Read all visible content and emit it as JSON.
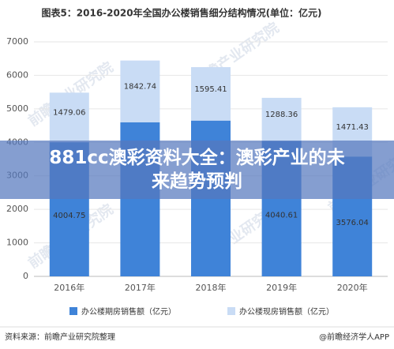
{
  "chart_data": {
    "type": "stacked_bar",
    "title": "图表5：2016-2020年全国办公楼销售细分结构情况(单位：亿元)",
    "categories": [
      "2016年",
      "2017年",
      "2018年",
      "2019年",
      "2020年"
    ],
    "series": [
      {
        "name": "办公楼期房销售额（亿元）",
        "color": "#3f83d8",
        "values": [
          4004.75,
          4600,
          4650,
          4040.61,
          3576.04
        ],
        "value_labels": [
          "4004.75",
          null,
          null,
          "4040.61",
          "3576.04"
        ]
      },
      {
        "name": "办公楼现房销售额（亿元）",
        "color": "#c9dcf5",
        "values": [
          1479.06,
          1842.74,
          1595.41,
          1288.36,
          1471.43
        ]
      }
    ],
    "ylim": [
      0,
      7000
    ],
    "yticks": [
      0,
      1000,
      2000,
      3000,
      4000,
      5000,
      6000,
      7000
    ],
    "grid": true,
    "source": "资料来源：前瞻产业研究院整理",
    "credit": "@前瞻经济学人APP",
    "watermark": "前瞻产业研究院"
  },
  "banner": {
    "text": "881cc澳彩资料大全：澳彩产业的未来趋势预判"
  }
}
